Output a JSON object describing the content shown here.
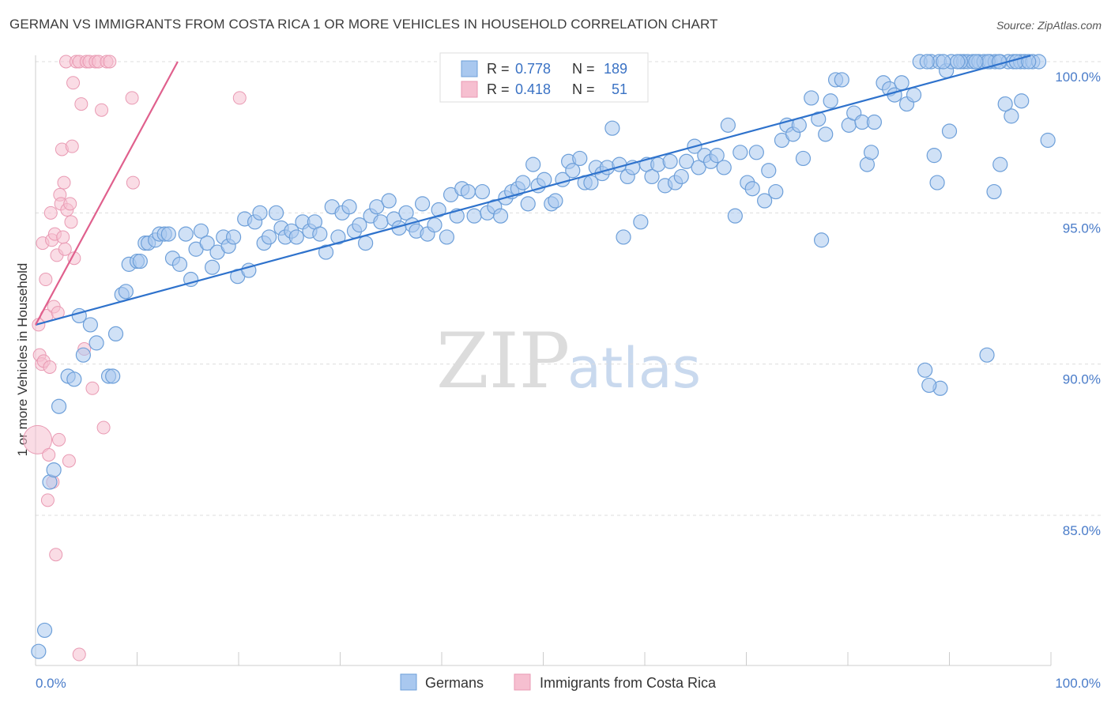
{
  "title": "GERMAN VS IMMIGRANTS FROM COSTA RICA 1 OR MORE VEHICLES IN HOUSEHOLD CORRELATION CHART",
  "source": "Source: ZipAtlas.com",
  "watermark": {
    "zip": "ZIP",
    "atlas": "atlas"
  },
  "colors": {
    "germans_fill": "#a9c8ef",
    "germans_stroke": "#6d9fd9",
    "germans_line": "#2e72cc",
    "costa_fill": "#f6bfd0",
    "costa_stroke": "#e99ab3",
    "costa_line": "#e0608d",
    "grid": "#dddddd",
    "tick_label": "#4a7cc9"
  },
  "legend": {
    "r_label": "R =",
    "n_label": "N =",
    "germans": {
      "r": "0.778",
      "n": "189"
    },
    "costa": {
      "r": "0.418",
      "n": "51"
    }
  },
  "bottom_legend": {
    "germans": "Germans",
    "costa": "Immigrants from Costa Rica"
  },
  "chart_data": {
    "type": "scatter",
    "title": "GERMAN VS IMMIGRANTS FROM COSTA RICA 1 OR MORE VEHICLES IN HOUSEHOLD CORRELATION CHART",
    "xlabel": "",
    "ylabel": "1 or more Vehicles in Household",
    "x_tick_labels": [
      "0.0%",
      "100.0%"
    ],
    "y_tick_labels": [
      "85.0%",
      "90.0%",
      "95.0%",
      "100.0%"
    ],
    "xlim": [
      0,
      100
    ],
    "ylim": [
      80.0,
      100.5
    ],
    "y_ticks": [
      85,
      90,
      95,
      100
    ],
    "grid": true,
    "series": [
      {
        "name": "Germans",
        "trend": {
          "x": [
            0,
            98
          ],
          "y": [
            91.3,
            100.2
          ]
        },
        "points": [
          [
            0.3,
            80.5
          ],
          [
            0.9,
            81.2
          ],
          [
            1.4,
            86.1
          ],
          [
            1.8,
            86.5
          ],
          [
            2.3,
            88.6
          ],
          [
            3.2,
            89.6
          ],
          [
            3.8,
            89.5
          ],
          [
            4.3,
            91.6
          ],
          [
            4.7,
            90.3
          ],
          [
            5.4,
            91.3
          ],
          [
            6.0,
            90.7
          ],
          [
            7.2,
            89.6
          ],
          [
            7.6,
            89.6
          ],
          [
            7.9,
            91.0
          ],
          [
            8.5,
            92.3
          ],
          [
            8.9,
            92.4
          ],
          [
            9.2,
            93.3
          ],
          [
            10.0,
            93.4
          ],
          [
            10.3,
            93.4
          ],
          [
            10.8,
            94.0
          ],
          [
            11.1,
            94.0
          ],
          [
            11.8,
            94.1
          ],
          [
            12.2,
            94.3
          ],
          [
            12.7,
            94.3
          ],
          [
            13.1,
            94.3
          ],
          [
            13.5,
            93.5
          ],
          [
            14.2,
            93.3
          ],
          [
            14.8,
            94.3
          ],
          [
            15.3,
            92.8
          ],
          [
            15.8,
            93.8
          ],
          [
            16.3,
            94.4
          ],
          [
            16.9,
            94.0
          ],
          [
            17.4,
            93.2
          ],
          [
            17.9,
            93.7
          ],
          [
            18.5,
            94.2
          ],
          [
            19.0,
            93.9
          ],
          [
            19.5,
            94.2
          ],
          [
            19.9,
            92.9
          ],
          [
            20.6,
            94.8
          ],
          [
            21.0,
            93.1
          ],
          [
            21.6,
            94.7
          ],
          [
            22.1,
            95.0
          ],
          [
            22.5,
            94.0
          ],
          [
            23.0,
            94.2
          ],
          [
            23.7,
            95.0
          ],
          [
            24.2,
            94.5
          ],
          [
            24.6,
            94.2
          ],
          [
            25.2,
            94.4
          ],
          [
            25.7,
            94.2
          ],
          [
            26.3,
            94.7
          ],
          [
            27.0,
            94.4
          ],
          [
            27.5,
            94.7
          ],
          [
            28.0,
            94.3
          ],
          [
            28.6,
            93.7
          ],
          [
            29.2,
            95.2
          ],
          [
            29.8,
            94.2
          ],
          [
            30.2,
            95.0
          ],
          [
            30.9,
            95.2
          ],
          [
            31.4,
            94.4
          ],
          [
            31.9,
            94.6
          ],
          [
            32.5,
            94.0
          ],
          [
            33.0,
            94.9
          ],
          [
            33.6,
            95.2
          ],
          [
            34.0,
            94.7
          ],
          [
            34.8,
            95.4
          ],
          [
            35.3,
            94.8
          ],
          [
            35.8,
            94.5
          ],
          [
            36.5,
            95.0
          ],
          [
            37.1,
            94.6
          ],
          [
            37.5,
            94.4
          ],
          [
            38.1,
            95.3
          ],
          [
            38.6,
            94.3
          ],
          [
            39.3,
            94.6
          ],
          [
            39.7,
            95.1
          ],
          [
            40.5,
            94.2
          ],
          [
            40.9,
            95.6
          ],
          [
            41.5,
            94.9
          ],
          [
            42.0,
            95.8
          ],
          [
            42.6,
            95.7
          ],
          [
            43.2,
            94.9
          ],
          [
            44.0,
            95.7
          ],
          [
            44.5,
            95.0
          ],
          [
            45.2,
            95.2
          ],
          [
            45.8,
            94.9
          ],
          [
            46.3,
            95.5
          ],
          [
            46.9,
            95.7
          ],
          [
            47.5,
            95.8
          ],
          [
            48.0,
            96.0
          ],
          [
            48.5,
            95.3
          ],
          [
            49.0,
            96.6
          ],
          [
            49.5,
            95.9
          ],
          [
            50.1,
            96.1
          ],
          [
            50.8,
            95.3
          ],
          [
            51.2,
            95.4
          ],
          [
            51.9,
            96.1
          ],
          [
            52.5,
            96.7
          ],
          [
            52.9,
            96.4
          ],
          [
            53.6,
            96.8
          ],
          [
            54.1,
            96.0
          ],
          [
            54.7,
            96.0
          ],
          [
            55.2,
            96.5
          ],
          [
            55.8,
            96.3
          ],
          [
            56.3,
            96.5
          ],
          [
            56.8,
            97.8
          ],
          [
            57.5,
            96.6
          ],
          [
            57.9,
            94.2
          ],
          [
            58.3,
            96.2
          ],
          [
            58.8,
            96.5
          ],
          [
            59.6,
            94.7
          ],
          [
            60.2,
            96.6
          ],
          [
            60.7,
            96.2
          ],
          [
            61.3,
            96.6
          ],
          [
            62.0,
            95.9
          ],
          [
            62.5,
            96.7
          ],
          [
            63.0,
            96.0
          ],
          [
            63.6,
            96.2
          ],
          [
            64.1,
            96.7
          ],
          [
            64.9,
            97.2
          ],
          [
            65.3,
            96.5
          ],
          [
            65.9,
            96.9
          ],
          [
            66.5,
            96.7
          ],
          [
            67.1,
            96.9
          ],
          [
            67.8,
            96.5
          ],
          [
            68.2,
            97.9
          ],
          [
            68.9,
            94.9
          ],
          [
            69.4,
            97.0
          ],
          [
            70.1,
            96.0
          ],
          [
            70.6,
            95.8
          ],
          [
            71.0,
            97.0
          ],
          [
            71.8,
            95.4
          ],
          [
            72.2,
            96.4
          ],
          [
            72.9,
            95.7
          ],
          [
            73.5,
            97.4
          ],
          [
            74.0,
            97.9
          ],
          [
            74.6,
            97.6
          ],
          [
            75.2,
            97.9
          ],
          [
            75.6,
            96.8
          ],
          [
            76.4,
            98.8
          ],
          [
            77.1,
            98.1
          ],
          [
            77.4,
            94.1
          ],
          [
            77.8,
            97.6
          ],
          [
            78.3,
            98.7
          ],
          [
            78.8,
            99.4
          ],
          [
            79.4,
            99.4
          ],
          [
            80.1,
            97.9
          ],
          [
            80.6,
            98.3
          ],
          [
            81.4,
            98.0
          ],
          [
            81.9,
            96.6
          ],
          [
            82.3,
            97.0
          ],
          [
            82.6,
            98.0
          ],
          [
            83.5,
            99.3
          ],
          [
            84.1,
            99.1
          ],
          [
            84.6,
            98.9
          ],
          [
            85.3,
            99.3
          ],
          [
            85.8,
            98.6
          ],
          [
            86.5,
            98.9
          ],
          [
            87.1,
            100.0
          ],
          [
            87.6,
            89.8
          ],
          [
            88.2,
            100.0
          ],
          [
            89.0,
            100.0
          ],
          [
            89.7,
            99.7
          ],
          [
            90.2,
            100.0
          ],
          [
            91.4,
            100.0
          ],
          [
            91.8,
            100.0
          ],
          [
            92.3,
            100.0
          ],
          [
            92.9,
            100.0
          ],
          [
            93.4,
            100.0
          ],
          [
            94.0,
            100.0
          ],
          [
            94.5,
            100.0
          ],
          [
            95.0,
            100.0
          ],
          [
            95.8,
            100.0
          ],
          [
            96.3,
            100.0
          ],
          [
            97.0,
            100.0
          ],
          [
            97.4,
            100.0
          ],
          [
            98.2,
            100.0
          ],
          [
            97.1,
            98.7
          ],
          [
            96.1,
            98.2
          ],
          [
            95.5,
            98.6
          ],
          [
            94.4,
            95.7
          ],
          [
            89.1,
            89.2
          ],
          [
            88.5,
            96.9
          ],
          [
            90.0,
            97.7
          ],
          [
            88.8,
            96.0
          ],
          [
            99.7,
            97.4
          ],
          [
            98.8,
            100.0
          ],
          [
            93.7,
            90.3
          ],
          [
            95.0,
            96.6
          ],
          [
            93.8,
            100.0
          ],
          [
            94.9,
            100.0
          ],
          [
            91.1,
            100.0
          ],
          [
            87.8,
            100.0
          ],
          [
            90.8,
            100.0
          ],
          [
            89.4,
            100.0
          ],
          [
            96.6,
            100.0
          ],
          [
            97.8,
            100.0
          ],
          [
            92.6,
            100.0
          ],
          [
            88.0,
            89.3
          ]
        ]
      },
      {
        "name": "Immigrants from Costa Rica",
        "trend": {
          "x": [
            0,
            14
          ],
          "y": [
            91.3,
            100.0
          ]
        },
        "points": [
          [
            0.2,
            87.5
          ],
          [
            0.3,
            91.3
          ],
          [
            0.4,
            90.3
          ],
          [
            0.6,
            90.0
          ],
          [
            0.7,
            94.0
          ],
          [
            0.8,
            90.1
          ],
          [
            1.0,
            92.8
          ],
          [
            1.1,
            91.6
          ],
          [
            1.3,
            87.0
          ],
          [
            1.4,
            89.9
          ],
          [
            1.5,
            95.0
          ],
          [
            1.6,
            94.1
          ],
          [
            1.7,
            86.1
          ],
          [
            1.8,
            91.9
          ],
          [
            1.9,
            94.3
          ],
          [
            2.1,
            93.6
          ],
          [
            2.2,
            91.7
          ],
          [
            2.3,
            87.5
          ],
          [
            2.4,
            95.6
          ],
          [
            2.5,
            95.3
          ],
          [
            2.6,
            97.1
          ],
          [
            2.7,
            94.2
          ],
          [
            2.8,
            96.0
          ],
          [
            2.9,
            93.8
          ],
          [
            3.0,
            100.0
          ],
          [
            3.1,
            95.1
          ],
          [
            3.3,
            86.8
          ],
          [
            3.4,
            95.3
          ],
          [
            3.5,
            94.7
          ],
          [
            3.6,
            97.2
          ],
          [
            3.7,
            99.3
          ],
          [
            3.8,
            93.5
          ],
          [
            4.0,
            100.0
          ],
          [
            4.3,
            100.0
          ],
          [
            4.5,
            98.6
          ],
          [
            4.8,
            90.5
          ],
          [
            5.0,
            100.0
          ],
          [
            5.3,
            100.0
          ],
          [
            5.6,
            89.2
          ],
          [
            5.9,
            100.0
          ],
          [
            6.2,
            100.0
          ],
          [
            6.5,
            98.4
          ],
          [
            6.7,
            87.9
          ],
          [
            7.0,
            100.0
          ],
          [
            7.3,
            100.0
          ],
          [
            9.5,
            98.8
          ],
          [
            9.6,
            96.0
          ],
          [
            20.1,
            98.8
          ],
          [
            2.0,
            83.7
          ],
          [
            1.2,
            85.5
          ],
          [
            4.3,
            80.4
          ]
        ]
      }
    ]
  }
}
